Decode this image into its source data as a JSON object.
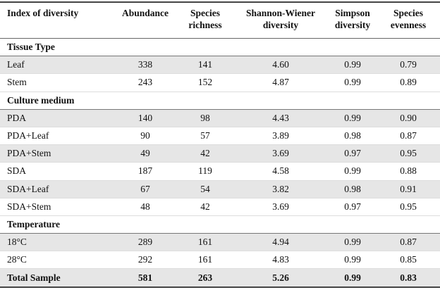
{
  "table": {
    "columns": [
      "Index of diversity",
      "Abundance",
      "Species richness",
      "Shannon-Wiener diversity",
      "Simpson diversity",
      "Species evenness"
    ],
    "sections": [
      {
        "title": "Tissue Type",
        "rows": [
          [
            "Leaf",
            "338",
            "141",
            "4.60",
            "0.99",
            "0.79"
          ],
          [
            "Stem",
            "243",
            "152",
            "4.87",
            "0.99",
            "0.89"
          ]
        ]
      },
      {
        "title": "Culture medium",
        "rows": [
          [
            "PDA",
            "140",
            "98",
            "4.43",
            "0.99",
            "0.90"
          ],
          [
            "PDA+Leaf",
            "90",
            "57",
            "3.89",
            "0.98",
            "0.87"
          ],
          [
            "PDA+Stem",
            "49",
            "42",
            "3.69",
            "0.97",
            "0.95"
          ],
          [
            "SDA",
            "187",
            "119",
            "4.58",
            "0.99",
            "0.88"
          ],
          [
            "SDA+Leaf",
            "67",
            "54",
            "3.82",
            "0.98",
            "0.91"
          ],
          [
            "SDA+Stem",
            "48",
            "42",
            "3.69",
            "0.97",
            "0.95"
          ]
        ]
      },
      {
        "title": "Temperature",
        "rows": [
          [
            "18°C",
            "289",
            "161",
            "4.94",
            "0.99",
            "0.87"
          ],
          [
            "28°C",
            "292",
            "161",
            "4.83",
            "0.99",
            "0.85"
          ]
        ]
      }
    ],
    "total": [
      "Total Sample",
      "581",
      "263",
      "5.26",
      "0.99",
      "0.83"
    ]
  }
}
